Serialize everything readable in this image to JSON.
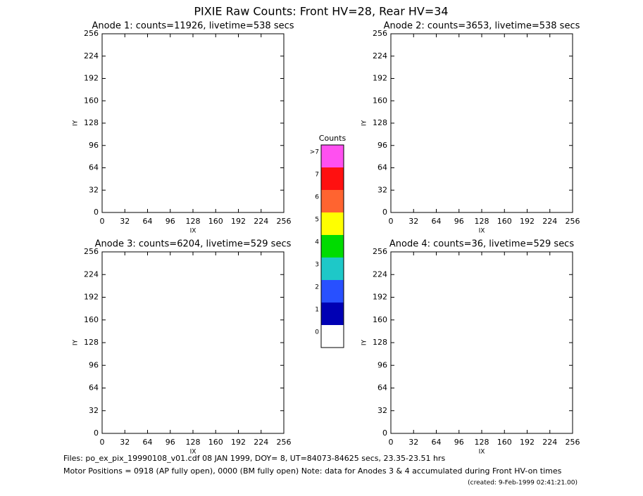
{
  "title": "PIXIE Raw Counts:  Front HV=28, Rear HV=34",
  "chart_data": [
    {
      "type": "heatmap",
      "title": "Anode 1: counts=11926, livetime=538 secs",
      "x_label": "IX",
      "y_label": "IY",
      "xlim": [
        0,
        256
      ],
      "ylim": [
        0,
        256
      ],
      "xticks": [
        0,
        32,
        64,
        96,
        128,
        160,
        192,
        224,
        256
      ],
      "yticks": [
        0,
        32,
        64,
        96,
        128,
        160,
        192,
        224,
        256
      ]
    },
    {
      "type": "heatmap",
      "title": "Anode 2: counts=3653, livetime=538 secs",
      "x_label": "IX",
      "y_label": "IY",
      "xlim": [
        0,
        256
      ],
      "ylim": [
        0,
        256
      ],
      "xticks": [
        0,
        32,
        64,
        96,
        128,
        160,
        192,
        224,
        256
      ],
      "yticks": [
        0,
        32,
        64,
        96,
        128,
        160,
        192,
        224,
        256
      ]
    },
    {
      "type": "heatmap",
      "title": "Anode 3: counts=6204, livetime=529 secs",
      "x_label": "IX",
      "y_label": "IY",
      "xlim": [
        0,
        256
      ],
      "ylim": [
        0,
        256
      ],
      "xticks": [
        0,
        32,
        64,
        96,
        128,
        160,
        192,
        224,
        256
      ],
      "yticks": [
        0,
        32,
        64,
        96,
        128,
        160,
        192,
        224,
        256
      ]
    },
    {
      "type": "heatmap",
      "title": "Anode 4: counts=36, livetime=529 secs",
      "x_label": "IX",
      "y_label": "IY",
      "xlim": [
        0,
        256
      ],
      "ylim": [
        0,
        256
      ],
      "xticks": [
        0,
        32,
        64,
        96,
        128,
        160,
        192,
        224,
        256
      ],
      "yticks": [
        0,
        32,
        64,
        96,
        128,
        160,
        192,
        224,
        256
      ]
    },
    {
      "type": "colorbar",
      "title": "Counts",
      "categories": [
        "0",
        "1",
        "2",
        "3",
        "4",
        "5",
        "6",
        "7",
        ">7"
      ],
      "colors": [
        "#ffffff",
        "#0000b4",
        "#2850ff",
        "#1ec8c8",
        "#00dc00",
        "#ffff00",
        "#ff6430",
        "#ff1010",
        "#ff50f0"
      ]
    }
  ],
  "footer": {
    "files": "Files: po_ex_pix_19990108_v01.cdf    08 JAN 1999, DOY=  8, UT=84073-84625 secs, 23.35-23.51 hrs",
    "motor": "Motor Positions = 0918 (AP fully open), 0000 (BM fully open)    Note: data for Anodes 3 & 4 accumulated during Front HV-on times",
    "created": "(created:  9-Feb-1999 02:41:21.00)"
  }
}
